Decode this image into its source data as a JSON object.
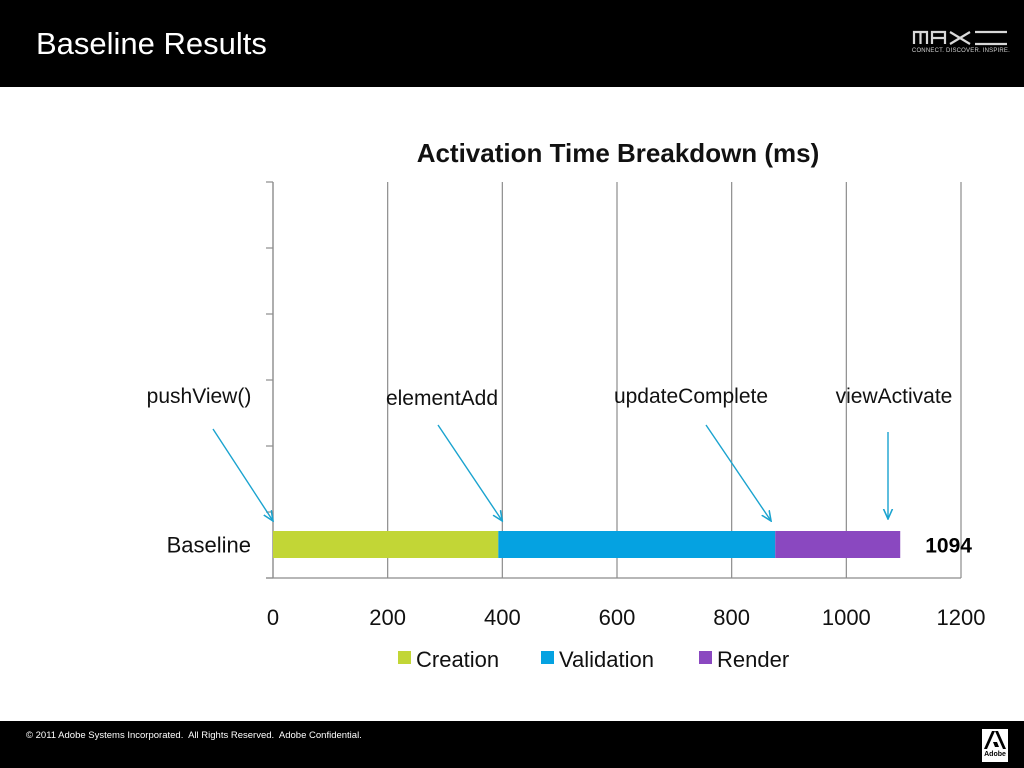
{
  "slide": {
    "title": "Baseline Results",
    "logo": {
      "icon": "max-logo-icon",
      "tagline": "CONNECT. DISCOVER. INSPIRE."
    },
    "footer": {
      "copyright": "© 2011 Adobe Systems Incorporated.  All Rights Reserved.  Adobe Confidential.",
      "adobe_label": "Adobe"
    }
  },
  "colors": {
    "creation": "#c2d636",
    "validation": "#05a2e1",
    "render": "#8a48c0",
    "annotation": "#1aa3cf",
    "grid": "#8c8c8c"
  },
  "chart_data": {
    "type": "bar",
    "orientation": "horizontal",
    "stacked": true,
    "title": "Activation Time Breakdown (ms)",
    "categories": [
      "Baseline"
    ],
    "series": [
      {
        "name": "Creation",
        "values": [
          393
        ]
      },
      {
        "name": "Validation",
        "values": [
          483
        ]
      },
      {
        "name": "Render",
        "values": [
          218
        ]
      }
    ],
    "total_labels": [
      "1094"
    ],
    "xlim": [
      0,
      1200
    ],
    "xticks": [
      "0",
      "200",
      "400",
      "600",
      "800",
      "1000",
      "1200"
    ],
    "grid": true,
    "legend": "bottom",
    "annotations": [
      {
        "text": "pushView()",
        "x": 0
      },
      {
        "text": "elementAdd",
        "x": 393
      },
      {
        "text": "updateComplete",
        "x": 860
      },
      {
        "text": "viewActivate",
        "x": 1073
      }
    ]
  }
}
